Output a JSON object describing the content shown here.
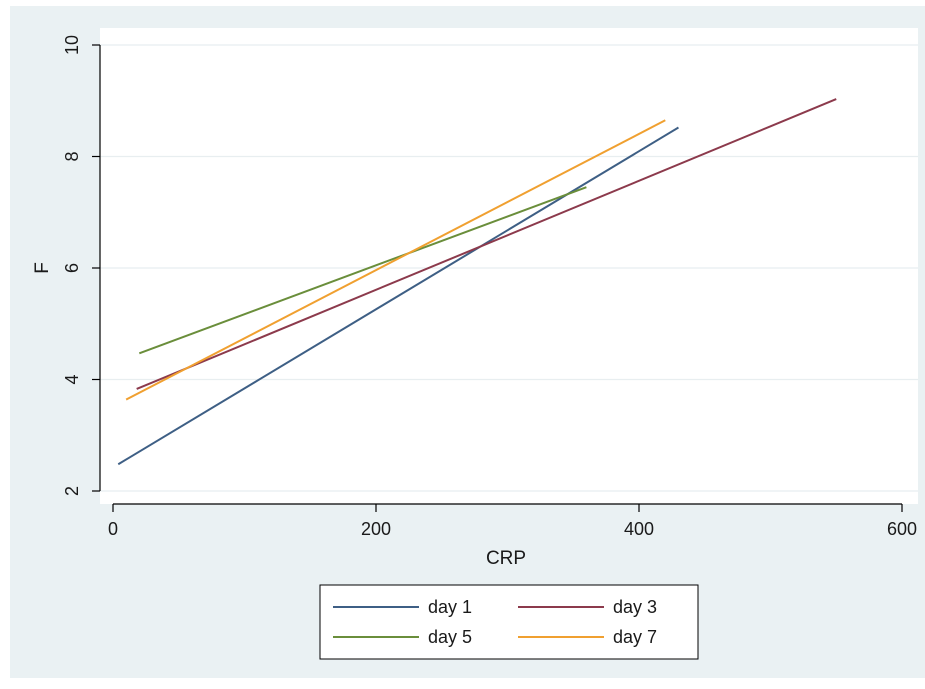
{
  "chart_data": {
    "type": "line",
    "title": "",
    "xlabel": "CRP",
    "ylabel": "F",
    "xlim": [
      0,
      600
    ],
    "ylim": [
      2,
      10
    ],
    "x_ticks": [
      0,
      200,
      400,
      600
    ],
    "y_ticks": [
      2,
      4,
      6,
      8,
      10
    ],
    "grid": "horizontal",
    "legend_position": "bottom",
    "series": [
      {
        "name": "day 1",
        "color": "#3e5f85",
        "x": [
          4,
          430
        ],
        "y": [
          2.48,
          8.52
        ]
      },
      {
        "name": "day 3",
        "color": "#8c3a4c",
        "x": [
          18,
          550
        ],
        "y": [
          3.83,
          9.03
        ]
      },
      {
        "name": "day 5",
        "color": "#6a8e3b",
        "x": [
          20,
          360
        ],
        "y": [
          4.47,
          7.45
        ]
      },
      {
        "name": "day 7",
        "color": "#f0a030",
        "x": [
          10,
          420
        ],
        "y": [
          3.64,
          8.65
        ]
      }
    ]
  },
  "colors": {
    "outer_background": "#eaf1f3",
    "plot_background": "#ffffff",
    "gridline": "#e8eef0",
    "axis": "#000000"
  }
}
